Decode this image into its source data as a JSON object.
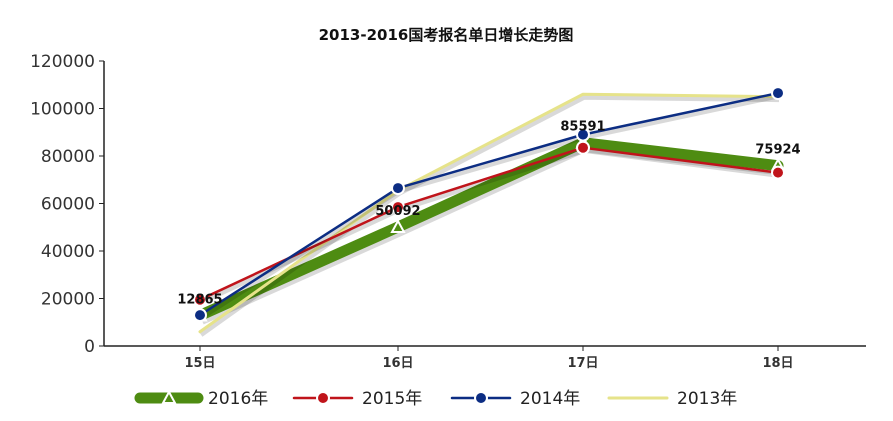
{
  "chart_data": {
    "type": "line",
    "title": "2013-2016国考报名单日增长走势图",
    "xlabel": "",
    "ylabel": "",
    "categories": [
      "15日",
      "16日",
      "17日",
      "18日"
    ],
    "ylim": [
      0,
      120000
    ],
    "yticks": [
      "0",
      "20000",
      "40000",
      "60000",
      "80000",
      "100000",
      "120000"
    ],
    "grid": false,
    "legend_position": "bottom",
    "series": [
      {
        "name": "2016年",
        "color": "#4e8c12",
        "values": [
          12865,
          50092,
          85591,
          75924
        ],
        "marker": "triangle",
        "labels": [
          "12865",
          "50092",
          "85591",
          "75924"
        ]
      },
      {
        "name": "2015年",
        "color": "#c0141b",
        "values": [
          19500,
          58500,
          83500,
          73000
        ],
        "marker": "circle",
        "labels": []
      },
      {
        "name": "2014年",
        "color": "#0c2d83",
        "values": [
          13000,
          66500,
          89000,
          106500
        ],
        "marker": "circle",
        "labels": []
      },
      {
        "name": "2013年",
        "color": "#e6e38a",
        "values": [
          6000,
          65500,
          106000,
          105000
        ],
        "marker": "none",
        "labels": []
      }
    ]
  }
}
